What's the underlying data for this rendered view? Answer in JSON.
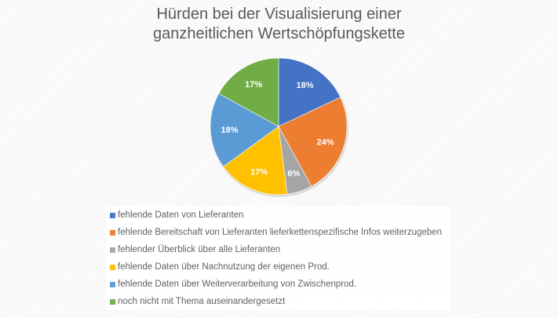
{
  "chart_data": {
    "type": "pie",
    "title": "Hürden bei der Visualisierung einer ganzheitlichen Wertschöpfungskette",
    "title_lines": [
      "Hürden bei der Visualisierung einer",
      "ganzheitlichen Wertschöpfungskette"
    ],
    "categories": [
      "fehlende Daten von Lieferanten",
      "fehlende Bereitschaft von Lieferanten lieferkettenspezifische Infos weiterzugeben",
      "fehlender Überblick über alle Lieferanten",
      "fehlende Daten über Nachnutzung der eigenen Prod.",
      "fehlende Daten über Weiterverarbeitung von Zwischenprod.",
      "noch nicht mit Thema auseinandergesetzt"
    ],
    "values": [
      18,
      24,
      6,
      17,
      18,
      17
    ],
    "labels": [
      "18%",
      "24%",
      "6%",
      "17%",
      "18%",
      "17%"
    ],
    "colors": [
      "#4472c4",
      "#ed7d31",
      "#a5a5a5",
      "#ffc000",
      "#5b9bd5",
      "#70ad47"
    ],
    "legend_position": "bottom",
    "unit": "%"
  }
}
